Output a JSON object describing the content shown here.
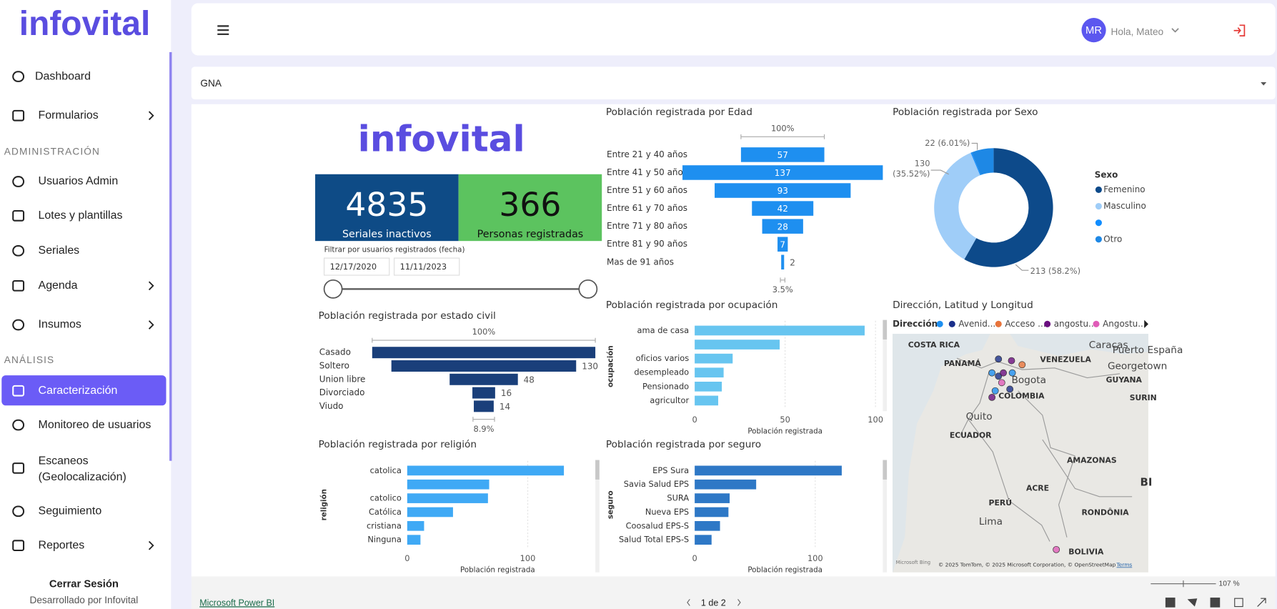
{
  "sidebar": {
    "logo": "infovital",
    "items": [
      {
        "label": "Dashboard"
      },
      {
        "label": "Formularios",
        "submenu": true
      }
    ],
    "sections": [
      {
        "heading": "ADMINISTRACIÓN",
        "items": [
          {
            "label": "Usuarios Admin"
          },
          {
            "label": "Lotes y plantillas"
          },
          {
            "label": "Seriales"
          },
          {
            "label": "Agenda",
            "submenu": true
          },
          {
            "label": "Insumos",
            "submenu": true
          }
        ]
      },
      {
        "heading": "ANÁLISIS",
        "items": [
          {
            "label": "Caracterización",
            "active": true
          },
          {
            "label": "Monitoreo de usuarios"
          },
          {
            "label": "Escaneos (Geolocalización)"
          },
          {
            "label": "Seguimiento"
          },
          {
            "label": "Reportes",
            "submenu": true
          }
        ]
      }
    ],
    "logout": "Cerrar Sesión",
    "credit": "Desarrollado por Infovital"
  },
  "header": {
    "initials": "MR",
    "greeting": "Hola, Mateo"
  },
  "filter": "GNA",
  "report": {
    "logo": "infovital",
    "kpis": [
      {
        "value": 4835,
        "label": "Seriales inactivos",
        "color": "#0e4b86",
        "text_color": "#ffffff"
      },
      {
        "value": 366,
        "label": "Personas registradas",
        "color": "#5cc35f",
        "text_color": "#111111"
      }
    ],
    "date_filter": {
      "label": "Filtrar por usuarios registrados (fecha)",
      "start": "12/17/2020",
      "end": "11/11/2023"
    }
  },
  "charts": {
    "edad": {
      "type": "funnel",
      "title": "Población registrada por Edad",
      "top_label": "100%",
      "bottom_label": "3.5%",
      "color": "#1e8ff0",
      "categories": [
        "Entre 21 y 40 años",
        "Entre 41 y 50 años",
        "Entre 51 y 60 años",
        "Entre 61 y 70 años",
        "Entre 71 y 80 años",
        "Entre 81 y 90 años",
        "Mas de 91 años"
      ],
      "values": [
        57,
        137,
        93,
        42,
        28,
        7,
        2
      ]
    },
    "sexo": {
      "type": "donut",
      "title": "Población registrada por Sexo",
      "legend_title": "Sexo",
      "legend": "right",
      "categories": [
        "Femenino",
        "Masculino",
        null,
        "Otro"
      ],
      "values": [
        213,
        130,
        1,
        22
      ],
      "value_labels": [
        "213 (58.2%)",
        "130 (35.52%)",
        null,
        "22 (6.01%)"
      ],
      "colors": [
        "#0d4a8a",
        "#9fcdf8",
        "#118dff",
        "#1e88e5"
      ]
    },
    "estado_civil": {
      "type": "funnel",
      "title": "Población registrada por estado civil",
      "top_label": "100%",
      "bottom_label": "8.9%",
      "color": "#1a3f7a",
      "categories": [
        "Casado",
        "Soltero",
        "Union libre",
        "Divorciado",
        "Viudo"
      ],
      "values": [
        157,
        130,
        48,
        16,
        14
      ]
    },
    "ocupacion": {
      "type": "hbar",
      "title": "Población registrada por ocupación",
      "x_label": "Población registrada",
      "y_label": "ocupación",
      "color": "#67c5f0",
      "categories": [
        "ama de casa",
        null,
        "oficios varios",
        "desempleado",
        "Pensionado",
        "agricultor"
      ],
      "values": [
        94,
        47,
        21,
        16,
        15,
        13
      ],
      "xlim": [
        0,
        100
      ],
      "xticks": [
        0,
        50,
        100
      ],
      "grid": true
    },
    "religion": {
      "type": "hbar",
      "title": "Población registrada por religión",
      "x_label": "Población registrada",
      "y_label": "religión",
      "color": "#3fa9f5",
      "categories": [
        "catolica",
        null,
        "catolico",
        "Católica",
        "cristiana",
        "Ninguna"
      ],
      "values": [
        130,
        68,
        67,
        38,
        14,
        11
      ],
      "xlim": [
        0,
        150
      ],
      "xticks": [
        0,
        100
      ],
      "grid": true
    },
    "seguro": {
      "type": "hbar",
      "title": "Población registrada por seguro",
      "x_label": "Población registrada",
      "y_label": "seguro",
      "color": "#2e78c6",
      "categories": [
        "EPS Sura",
        "Savia Salud EPS",
        "SURA",
        "Nueva EPS",
        "Coosalud EPS-S",
        "Salud Total EPS-S"
      ],
      "values": [
        122,
        51,
        29,
        28,
        21,
        14
      ],
      "xlim": [
        0,
        150
      ],
      "xticks": [
        0,
        100
      ],
      "grid": true
    },
    "mapa": {
      "type": "map",
      "title": "Dirección, Latitud y Longitud",
      "legend_title": "Dirección",
      "series": [
        {
          "name": null,
          "color": "#1e8ff0"
        },
        {
          "name": "Avenid...",
          "color": "#1a2f8a"
        },
        {
          "name": "Acceso ...",
          "color": "#e8743b"
        },
        {
          "name": "angostu...",
          "color": "#6b0f80"
        },
        {
          "name": "Angostu...",
          "color": "#e05cb8"
        }
      ],
      "labels": [
        "COSTA RICA",
        "Caracas",
        "Puerto España",
        "PANAMÁ",
        "VENEZUELA",
        "Georgetown",
        "GUYANA",
        "Bogota",
        "COLOMBIA",
        "SURIN",
        "Quito",
        "ECUADOR",
        "AMAZONAS",
        "ACRE",
        "PERÚ",
        "RONDÔNIA",
        "Lima",
        "BOLIVIA",
        "BI"
      ],
      "brand": "Microsoft Bing",
      "attribution": "© 2025 TomTom, © 2025 Microsoft Corporation, © OpenStreetMap",
      "terms": "Terms"
    }
  },
  "footer": {
    "link": "Microsoft Power BI",
    "page": "1 de 2",
    "zoom": "107 %"
  }
}
